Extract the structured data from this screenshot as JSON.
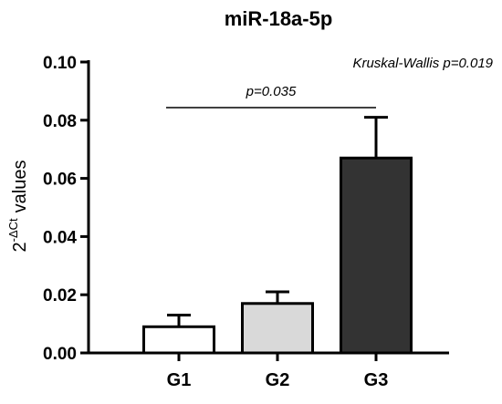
{
  "chart_data": {
    "type": "bar",
    "title": "miR-18a-5p",
    "ylabel": {
      "base": "2",
      "exponent": "-ΔCt",
      "suffix": "values"
    },
    "ylim": [
      0,
      0.1
    ],
    "yticks": [
      "0.00",
      "0.02",
      "0.04",
      "0.06",
      "0.08",
      "0.10"
    ],
    "categories": [
      "G1",
      "G2",
      "G3"
    ],
    "values": [
      0.009,
      0.017,
      0.067
    ],
    "errors": [
      0.004,
      0.004,
      0.014
    ],
    "bar_colors": [
      "#ffffff",
      "#d9d9d9",
      "#333333"
    ],
    "annotations": {
      "test": "Kruskal-Wallis p=0.019",
      "comparison": {
        "from": "G1",
        "to": "G3",
        "label": "p=0.035",
        "y": 0.084
      }
    }
  }
}
